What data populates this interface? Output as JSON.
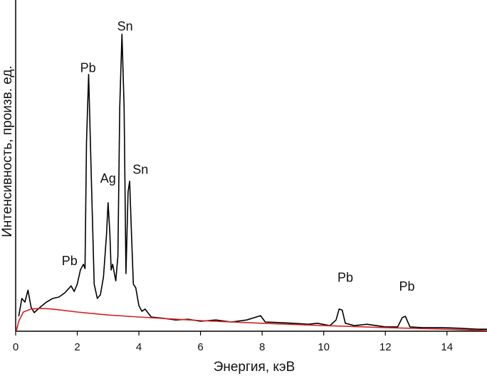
{
  "chart_data": {
    "type": "line",
    "x_label": "Энергия, кэВ",
    "y_label": "Интенсивность, произв. ед.",
    "xlim": [
      0,
      15.3
    ],
    "ylim": [
      0,
      100
    ],
    "xticks": [
      0,
      2,
      4,
      6,
      8,
      10,
      12,
      14
    ],
    "series": [
      {
        "color": "#000000",
        "x": [
          0.1,
          0.2,
          0.3,
          0.4,
          0.5,
          0.6,
          0.8,
          1.0,
          1.2,
          1.4,
          1.6,
          1.8,
          1.9,
          2.0,
          2.1,
          2.2,
          2.25,
          2.3,
          2.37,
          2.45,
          2.55,
          2.65,
          2.75,
          2.85,
          2.95,
          3.0,
          3.06,
          3.1,
          3.15,
          3.25,
          3.32,
          3.38,
          3.45,
          3.52,
          3.58,
          3.65,
          3.7,
          3.76,
          3.82,
          3.9,
          4.0,
          4.1,
          4.2,
          4.4,
          4.8,
          5.2,
          5.6,
          6.0,
          6.5,
          7.0,
          7.5,
          7.95,
          8.1,
          8.6,
          9.0,
          9.5,
          9.8,
          10.2,
          10.4,
          10.5,
          10.6,
          10.7,
          11.0,
          11.4,
          12.0,
          12.4,
          12.55,
          12.65,
          12.8,
          13.2,
          13.8,
          14.4,
          15.0,
          15.3
        ],
        "values": [
          4.5,
          9.9,
          8.8,
          12.4,
          7.3,
          5.6,
          7.3,
          8.8,
          9.9,
          10.3,
          11.6,
          13.7,
          12.0,
          14.2,
          18.5,
          20.2,
          18.9,
          57.1,
          77.5,
          48.5,
          14.2,
          9.9,
          11.0,
          16.3,
          29.2,
          38.8,
          29.2,
          18.5,
          20.2,
          15.2,
          22.7,
          67.8,
          89.7,
          67.8,
          17.4,
          42.1,
          45.3,
          29.2,
          14.2,
          13.1,
          7.7,
          6.0,
          6.7,
          4.3,
          3.9,
          3.4,
          3.6,
          3.0,
          3.4,
          2.8,
          3.4,
          4.7,
          2.8,
          2.6,
          2.4,
          2.1,
          2.4,
          1.7,
          3.4,
          6.7,
          6.4,
          2.4,
          1.7,
          2.1,
          1.3,
          1.3,
          4.1,
          4.5,
          1.3,
          1.1,
          1.1,
          0.9,
          0.6,
          0.6
        ]
      },
      {
        "color": "#d42020",
        "x": [
          0.02,
          0.1,
          0.25,
          0.5,
          0.8,
          1.2,
          2,
          3,
          4,
          6,
          8,
          10,
          12,
          14,
          15.3
        ],
        "values": [
          0,
          3.0,
          5.8,
          6.7,
          6.9,
          6.7,
          5.8,
          4.9,
          4.3,
          3.2,
          2.4,
          1.7,
          1.1,
          0.6,
          0.2
        ]
      }
    ],
    "annotations": [
      {
        "text": "Pb",
        "x": 1.75,
        "y": 21
      },
      {
        "text": "Pb",
        "x": 2.35,
        "y": 79.2
      },
      {
        "text": "Sn",
        "x": 3.55,
        "y": 91.8
      },
      {
        "text": "Ag",
        "x": 3.0,
        "y": 45.9
      },
      {
        "text": "Sn",
        "x": 4.05,
        "y": 48.5
      },
      {
        "text": "Pb",
        "x": 10.7,
        "y": 15.9
      },
      {
        "text": "Pb",
        "x": 12.7,
        "y": 13.3
      }
    ]
  }
}
